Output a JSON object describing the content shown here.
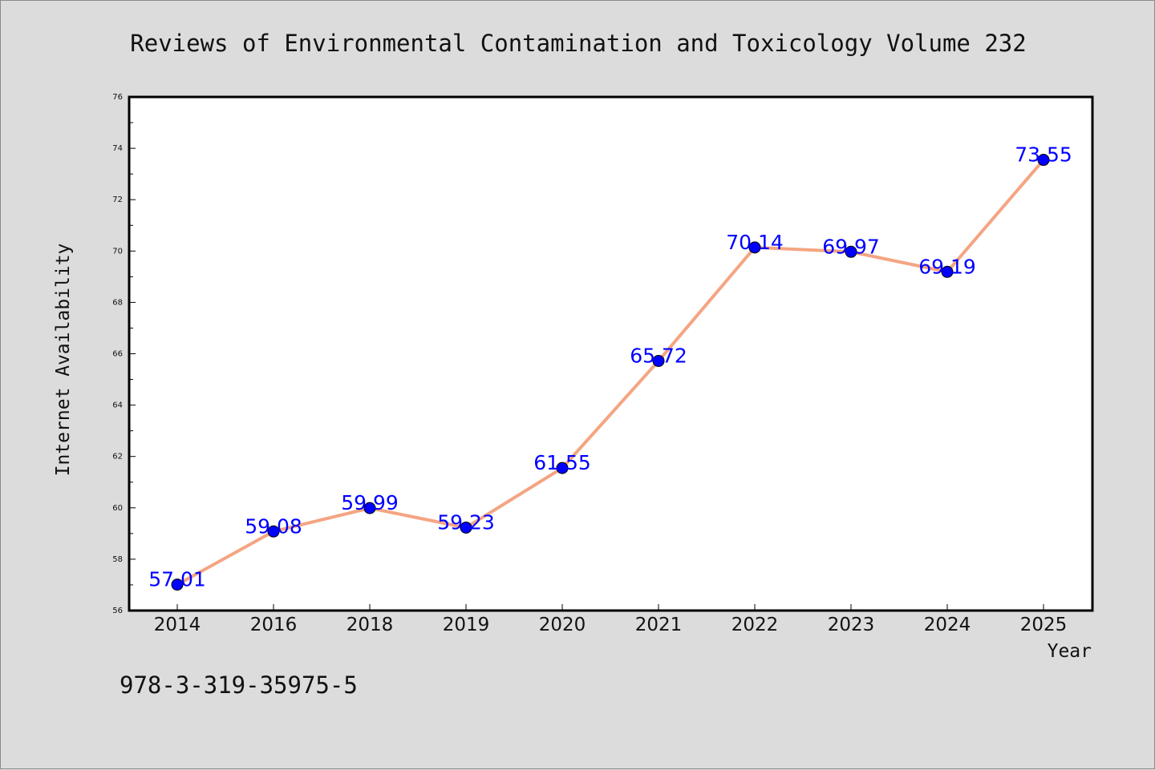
{
  "chart_data": {
    "type": "line",
    "title": "Reviews of Environmental Contamination and Toxicology Volume 232",
    "xlabel": "Year",
    "ylabel": "Internet Availability",
    "categories": [
      "2014",
      "2016",
      "2018",
      "2019",
      "2020",
      "2021",
      "2022",
      "2023",
      "2024",
      "2025"
    ],
    "values": [
      57.01,
      59.08,
      59.99,
      59.23,
      61.55,
      65.72,
      70.14,
      69.97,
      69.19,
      73.55
    ],
    "data_labels": [
      "57.01",
      "59.08",
      "59.99",
      "59.23",
      "61.55",
      "65.72",
      "70.14",
      "69.97",
      "69.19",
      "73.55"
    ],
    "ylim": [
      56,
      76
    ],
    "yticks": [
      "56",
      "58",
      "60",
      "62",
      "64",
      "66",
      "68",
      "70",
      "72",
      "74",
      "76"
    ],
    "grid": false,
    "line_color": "#f4a582",
    "marker_color": "#0000ff",
    "label_color": "#0000ff"
  },
  "footer": {
    "isbn": "978-3-319-35975-5"
  }
}
